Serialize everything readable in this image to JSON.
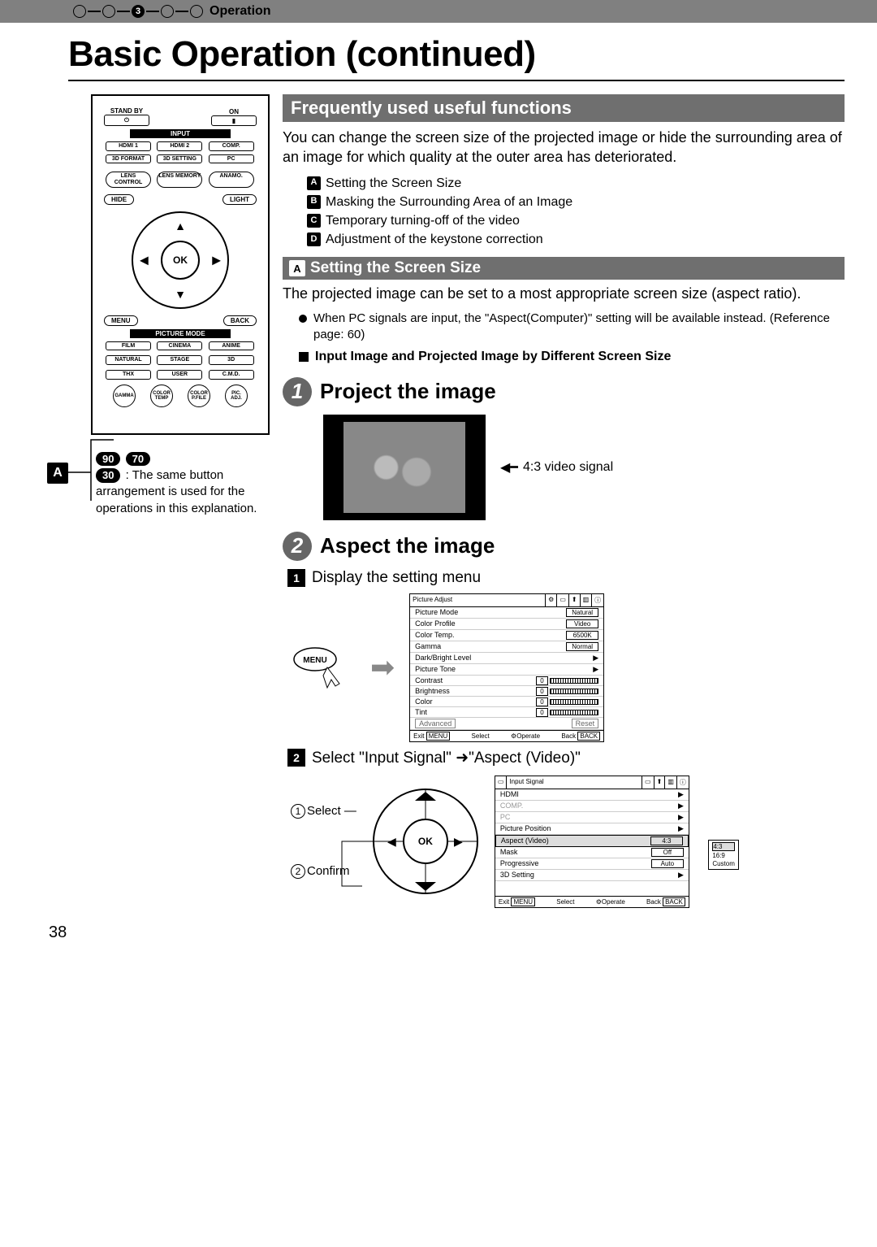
{
  "header": {
    "step_number": "3",
    "section": "Operation"
  },
  "title": "Basic Operation (continued)",
  "remote": {
    "top": {
      "standby": "STAND BY",
      "on": "ON"
    },
    "input_label": "INPUT",
    "input": [
      "HDMI 1",
      "HDMI 2",
      "COMP."
    ],
    "row2": [
      "3D FORMAT",
      "3D SETTING",
      "PC"
    ],
    "row3": [
      "LENS CONTROL",
      "LENS MEMORY",
      "ANAMO."
    ],
    "hide": "HIDE",
    "light": "LIGHT",
    "ok": "OK",
    "menu": "MENU",
    "back": "BACK",
    "picture_mode_label": "PICTURE MODE",
    "pm": [
      "FILM",
      "CINEMA",
      "ANIME",
      "NATURAL",
      "STAGE",
      "3D",
      "THX",
      "USER",
      "C.M.D."
    ],
    "round": [
      "GAMMA",
      "COLOR TEMP",
      "COLOR P.FILE",
      "PIC. ADJ."
    ]
  },
  "a_marker": "A",
  "badges": {
    "b90": "90",
    "b70": "70",
    "b30": "30"
  },
  "remote_note": " : The same button arrangement is used for the operations in this explanation.",
  "sec1": {
    "title": "Frequently used useful functions",
    "intro": "You can change the screen size of the projected image or hide the surrounding area of an image for which quality at the outer area has deteriorated.",
    "items": [
      {
        "l": "A",
        "t": "Setting the Screen Size"
      },
      {
        "l": "B",
        "t": "Masking the Surrounding Area of an Image"
      },
      {
        "l": "C",
        "t": "Temporary turning-off of the video"
      },
      {
        "l": "D",
        "t": "Adjustment of the keystone correction"
      }
    ]
  },
  "subA": {
    "letter": "A",
    "title": "Setting the Screen Size",
    "text": "The projected image can be set to a most appropriate screen size (aspect ratio).",
    "bullet": "When PC signals are input, the \"Aspect(Computer)\" setting will be available instead. (Reference page: 60)",
    "sq": "Input Image and Projected Image by Different Screen Size"
  },
  "step1": {
    "num": "1",
    "title": "Project the image",
    "signal": "4:3 video signal"
  },
  "step2": {
    "num": "2",
    "title": "Aspect the image",
    "s1_num": "1",
    "s1": "Display the setting menu",
    "s2_num": "2",
    "s2": "Select \"Input Signal\" ➜\"Aspect (Video)\"",
    "select": "Select",
    "confirm": "Confirm",
    "c1": "1",
    "c2": "2",
    "menu_btn": "MENU"
  },
  "osd1": {
    "header_main": "Picture Adjust",
    "rows": [
      {
        "k": "Picture Mode",
        "v": "Natural"
      },
      {
        "k": "Color Profile",
        "v": "Video"
      },
      {
        "k": "Color Temp.",
        "v": "6500K"
      },
      {
        "k": "Gamma",
        "v": "Normal"
      },
      {
        "k": "Dark/Bright Level",
        "v": "▶"
      },
      {
        "k": "Picture Tone",
        "v": "▶"
      },
      {
        "k": "Contrast",
        "v": "0",
        "slider": true
      },
      {
        "k": "Brightness",
        "v": "0",
        "slider": true
      },
      {
        "k": "Color",
        "v": "0",
        "slider": true
      },
      {
        "k": "Tint",
        "v": "0",
        "slider": true
      }
    ],
    "adv": "Advanced",
    "reset": "Reset",
    "exit": "Exit",
    "operate": "Operate",
    "back": "Back",
    "select": "Select",
    "menu": "MENU",
    "backbtn": "BACK"
  },
  "osd2": {
    "header_main": "Input Signal",
    "rows": [
      {
        "k": "HDMI",
        "v": "▶"
      },
      {
        "k": "COMP.",
        "v": "▶"
      },
      {
        "k": "PC",
        "v": "▶"
      },
      {
        "k": "Picture Position",
        "v": "▶"
      },
      {
        "k": "Aspect (Video)",
        "v": "4:3",
        "sel": true
      },
      {
        "k": "Mask",
        "v": "Off"
      },
      {
        "k": "Progressive",
        "v": "Auto"
      },
      {
        "k": "3D Setting",
        "v": "▶"
      }
    ],
    "exit": "Exit",
    "operate": "Operate",
    "back": "Back",
    "select": "Select",
    "menu": "MENU",
    "backbtn": "BACK",
    "popup": [
      "4:3",
      "16:9",
      "Custom"
    ]
  },
  "ok_label": "OK",
  "page_num": "38"
}
